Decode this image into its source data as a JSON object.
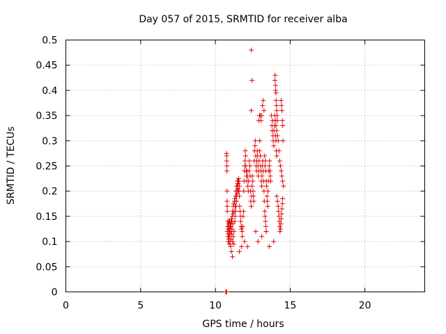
{
  "chart_data": {
    "type": "scatter",
    "title": "Day 057 of 2015, SRMTID for receiver alba",
    "xlabel": "GPS time / hours",
    "ylabel": "SRMTID / TECUs",
    "xlim": [
      0,
      24
    ],
    "ylim": [
      0,
      0.5
    ],
    "xticks": [
      0,
      5,
      10,
      15,
      20
    ],
    "yticks": [
      0,
      0.05,
      0.1,
      0.15,
      0.2,
      0.25,
      0.3,
      0.35,
      0.4,
      0.45,
      0.5
    ],
    "grid": true,
    "marker": "plus",
    "color": "#e00000",
    "series": [
      {
        "name": "SRMTID",
        "x": [
          10.7,
          10.72,
          10.75,
          10.75,
          10.75,
          10.76,
          10.77,
          10.77,
          10.78,
          10.78,
          10.79,
          10.8,
          10.8,
          10.82,
          10.83,
          10.84,
          10.85,
          10.86,
          10.87,
          10.88,
          10.89,
          10.9,
          10.91,
          10.92,
          10.93,
          10.94,
          10.95,
          10.96,
          10.97,
          10.98,
          11.0,
          11.02,
          11.04,
          11.05,
          11.06,
          11.08,
          11.1,
          11.12,
          11.14,
          11.15,
          11.17,
          11.2,
          11.22,
          11.25,
          11.0,
          11.05,
          11.08,
          11.1,
          11.12,
          11.15,
          11.18,
          11.2,
          11.22,
          11.25,
          11.28,
          11.3,
          11.32,
          11.35,
          11.38,
          11.4,
          11.42,
          11.45,
          11.48,
          11.5,
          11.52,
          11.55,
          11.58,
          11.6,
          11.3,
          11.32,
          11.35,
          11.38,
          11.4,
          11.42,
          11.45,
          11.48,
          11.5,
          11.52,
          11.55,
          11.58,
          11.6,
          11.62,
          11.65,
          11.68,
          11.7,
          11.72,
          11.75,
          11.78,
          11.8,
          11.82,
          11.85,
          11.88,
          11.9,
          11.92,
          11.94,
          11.96,
          11.98,
          12.0,
          12.02,
          12.04,
          12.06,
          12.08,
          12.1,
          12.12,
          12.15,
          12.17,
          12.2,
          12.22,
          12.25,
          12.27,
          12.3,
          12.32,
          12.35,
          12.37,
          12.4,
          12.42,
          12.45,
          12.47,
          12.5,
          12.52,
          12.55,
          12.57,
          12.4,
          12.6,
          12.62,
          12.65,
          12.67,
          12.7,
          12.72,
          12.75,
          12.77,
          12.8,
          12.82,
          12.85,
          12.87,
          12.9,
          12.92,
          12.95,
          12.97,
          13.0,
          13.02,
          13.05,
          13.07,
          13.1,
          13.12,
          13.15,
          13.17,
          13.2,
          13.22,
          13.25,
          13.27,
          13.3,
          13.32,
          13.35,
          13.37,
          13.4,
          12.9,
          12.95,
          13.0,
          13.05,
          13.1,
          13.15,
          13.2,
          13.25,
          13.3,
          13.32,
          13.35,
          13.37,
          13.4,
          13.42,
          13.45,
          13.47,
          13.5,
          13.52,
          13.55,
          13.57,
          13.6,
          13.62,
          13.65,
          13.67,
          13.7,
          13.75,
          13.78,
          13.8,
          13.82,
          13.85,
          13.87,
          13.9,
          13.92,
          13.95,
          13.97,
          14.0,
          14.02,
          14.05,
          14.07,
          14.1,
          13.98,
          14.0,
          14.02,
          14.03,
          14.05,
          14.06,
          14.08,
          14.1,
          14.12,
          14.14,
          14.0,
          14.05,
          14.1,
          14.15,
          14.2,
          14.25,
          14.3,
          14.35,
          14.4,
          14.45,
          14.5,
          14.55,
          14.1,
          14.15,
          14.2,
          14.22,
          14.25,
          14.28,
          14.3,
          14.32,
          14.35,
          14.38,
          14.4,
          14.42,
          14.45,
          14.48,
          14.5,
          14.4,
          14.42,
          14.45,
          14.48,
          14.5,
          14.52,
          12.4,
          12.45,
          12.7,
          12.85,
          13.1,
          13.4,
          13.6,
          13.9,
          11.6,
          11.75,
          11.95,
          12.15
        ],
        "y": [
          0.0,
          0.0,
          0.0,
          0.275,
          0.27,
          0.26,
          0.25,
          0.24,
          0.2,
          0.18,
          0.17,
          0.16,
          0.12,
          0.13,
          0.14,
          0.11,
          0.125,
          0.1,
          0.135,
          0.115,
          0.105,
          0.14,
          0.12,
          0.13,
          0.095,
          0.11,
          0.14,
          0.125,
          0.115,
          0.1,
          0.13,
          0.09,
          0.12,
          0.14,
          0.105,
          0.08,
          0.115,
          0.125,
          0.07,
          0.1,
          0.135,
          0.11,
          0.095,
          0.12,
          0.135,
          0.13,
          0.145,
          0.14,
          0.15,
          0.16,
          0.155,
          0.17,
          0.175,
          0.16,
          0.18,
          0.185,
          0.17,
          0.19,
          0.2,
          0.18,
          0.21,
          0.195,
          0.22,
          0.205,
          0.215,
          0.2,
          0.22,
          0.21,
          0.14,
          0.15,
          0.16,
          0.17,
          0.18,
          0.19,
          0.2,
          0.21,
          0.215,
          0.22,
          0.225,
          0.2,
          0.19,
          0.17,
          0.16,
          0.15,
          0.14,
          0.13,
          0.125,
          0.12,
          0.11,
          0.13,
          0.15,
          0.16,
          0.2,
          0.22,
          0.24,
          0.25,
          0.26,
          0.28,
          0.27,
          0.25,
          0.24,
          0.23,
          0.22,
          0.24,
          0.23,
          0.21,
          0.2,
          0.22,
          0.24,
          0.26,
          0.25,
          0.23,
          0.2,
          0.18,
          0.17,
          0.19,
          0.21,
          0.23,
          0.22,
          0.2,
          0.19,
          0.18,
          0.36,
          0.26,
          0.28,
          0.29,
          0.3,
          0.27,
          0.25,
          0.24,
          0.26,
          0.28,
          0.27,
          0.25,
          0.23,
          0.24,
          0.26,
          0.28,
          0.3,
          0.27,
          0.25,
          0.24,
          0.22,
          0.21,
          0.23,
          0.25,
          0.26,
          0.24,
          0.22,
          0.2,
          0.18,
          0.16,
          0.15,
          0.14,
          0.13,
          0.12,
          0.34,
          0.35,
          0.35,
          0.34,
          0.35,
          0.37,
          0.38,
          0.36,
          0.27,
          0.25,
          0.26,
          0.24,
          0.22,
          0.21,
          0.19,
          0.18,
          0.17,
          0.2,
          0.22,
          0.24,
          0.25,
          0.26,
          0.24,
          0.23,
          0.22,
          0.35,
          0.33,
          0.32,
          0.34,
          0.31,
          0.3,
          0.29,
          0.32,
          0.33,
          0.35,
          0.34,
          0.31,
          0.3,
          0.28,
          0.27,
          0.42,
          0.43,
          0.41,
          0.4,
          0.395,
          0.38,
          0.37,
          0.36,
          0.35,
          0.34,
          0.34,
          0.33,
          0.32,
          0.31,
          0.3,
          0.28,
          0.26,
          0.25,
          0.24,
          0.23,
          0.22,
          0.21,
          0.19,
          0.18,
          0.17,
          0.16,
          0.15,
          0.14,
          0.13,
          0.12,
          0.125,
          0.135,
          0.145,
          0.155,
          0.165,
          0.175,
          0.185,
          0.38,
          0.37,
          0.36,
          0.34,
          0.33,
          0.3,
          0.48,
          0.42,
          0.12,
          0.1,
          0.11,
          0.12,
          0.09,
          0.1,
          0.08,
          0.09,
          0.1,
          0.09
        ]
      }
    ]
  }
}
